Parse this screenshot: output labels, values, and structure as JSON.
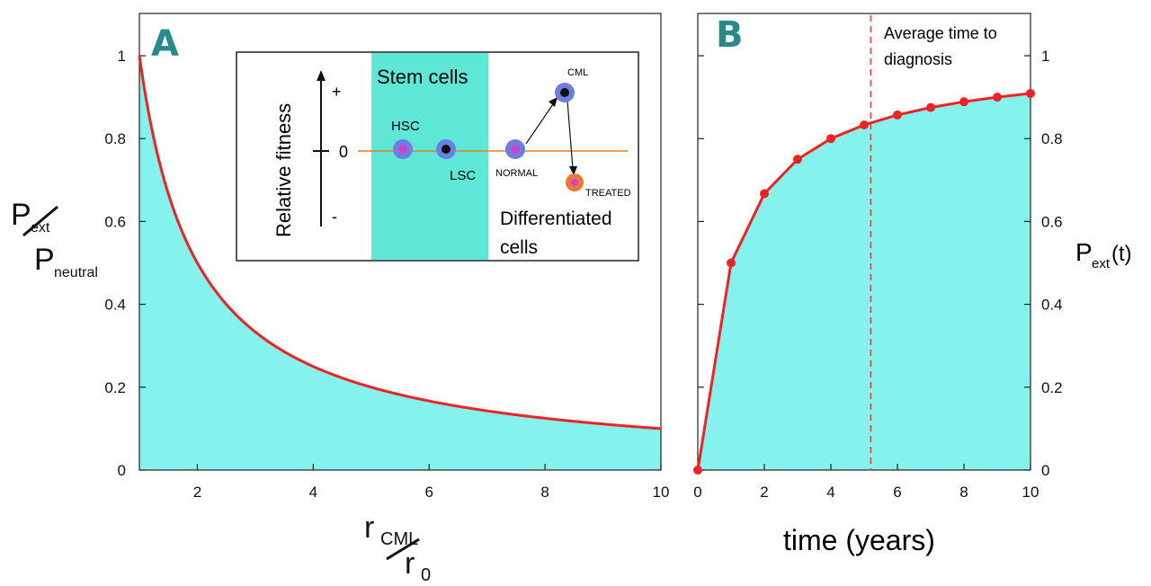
{
  "chart_data": [
    {
      "panel": "A",
      "type": "area",
      "series": [
        {
          "name": "P_ext/P_neutral",
          "formula": "1/x",
          "x_start": 1,
          "x_end": 10
        }
      ],
      "xlim": [
        1,
        10
      ],
      "ylim": [
        0,
        1.1
      ],
      "x_ticks": [
        "2",
        "4",
        "6",
        "8",
        "10"
      ],
      "y_ticks": [
        "0",
        "0.2",
        "0.4",
        "0.6",
        "0.8",
        "1"
      ],
      "colors": {
        "line": "#ee2222",
        "fill": "#86f2ee"
      },
      "ylabel": {
        "main": "P",
        "sub1": "ext",
        "sub2": "neutral"
      },
      "xlabel": {
        "main1": "r",
        "sub1": "CML",
        "main2": "r",
        "sub2": "0"
      },
      "inset": {
        "axis_label": "Relative fitness",
        "plus": "+",
        "zero": "0",
        "minus": "-",
        "stem_label": "Stem cells",
        "diff_label_1": "Differentiated",
        "diff_label_2": "cells",
        "cells": [
          {
            "label": "HSC",
            "color": "#cc44cc"
          },
          {
            "label": "LSC",
            "color": "#111111"
          },
          {
            "label": "NORMAL",
            "color": "#cc44cc"
          },
          {
            "label": "CML",
            "color": "#111111"
          },
          {
            "label": "TREATED",
            "color": "#ee7733"
          }
        ]
      }
    },
    {
      "panel": "B",
      "type": "line",
      "x": [
        0,
        1,
        2,
        3,
        4,
        5,
        6,
        7,
        8,
        9,
        10
      ],
      "y": [
        0,
        0.5,
        0.667,
        0.75,
        0.8,
        0.833,
        0.857,
        0.875,
        0.889,
        0.9,
        0.909
      ],
      "xlim": [
        0,
        10
      ],
      "ylim": [
        0,
        1.1
      ],
      "x_ticks": [
        "0",
        "2",
        "4",
        "6",
        "8",
        "10"
      ],
      "y_ticks": [
        "0",
        "0.2",
        "0.4",
        "0.6",
        "0.8",
        "1"
      ],
      "colors": {
        "line": "#ee2222",
        "fill": "#86f2ee",
        "marker": "#ee2222",
        "dashed": "#dd4444"
      },
      "xlabel": "time (years)",
      "ylabel": {
        "main": "P",
        "sub": "ext",
        "suffix": "(t)"
      },
      "annotation": {
        "line1": "Average time to",
        "line2": "diagnosis",
        "x": 5.2
      }
    }
  ]
}
